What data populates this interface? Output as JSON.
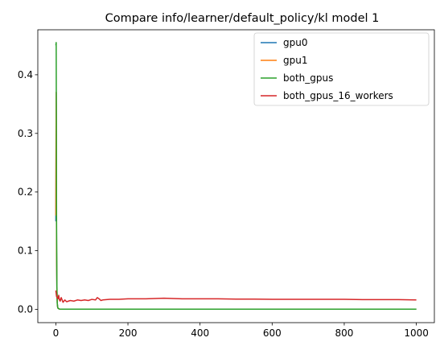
{
  "chart_data": {
    "type": "line",
    "title": "Compare info/learner/default_policy/kl model 1",
    "xlabel": "",
    "ylabel": "",
    "xlim": [
      -50,
      1050
    ],
    "ylim": [
      -0.0227,
      0.4767
    ],
    "x_ticks": [
      0,
      200,
      400,
      600,
      800,
      1000
    ],
    "y_ticks": [
      0.0,
      0.1,
      0.2,
      0.3,
      0.4
    ],
    "x_tick_labels": [
      "0",
      "200",
      "400",
      "600",
      "800",
      "1000"
    ],
    "y_tick_labels": [
      "0.0",
      "0.1",
      "0.2",
      "0.3",
      "0.4"
    ],
    "grid": false,
    "legend_position": "top-right",
    "series": [
      {
        "name": "gpu0",
        "color": "#1f77b4",
        "x": [
          0,
          1,
          2,
          3,
          4,
          5,
          6,
          8,
          10,
          20,
          50,
          100,
          200,
          400,
          600,
          800,
          1000
        ],
        "y": [
          0.15,
          0.37,
          0.1,
          0.03,
          0.01,
          0.004,
          0.002,
          0.001,
          0.0005,
          0.0003,
          0.0002,
          0.0002,
          0.0002,
          0.0002,
          0.0002,
          0.0002,
          0.0002
        ]
      },
      {
        "name": "gpu1",
        "color": "#ff7f0e",
        "x": [
          0,
          1,
          2,
          3,
          4,
          5,
          6,
          8,
          10,
          20,
          50,
          100,
          200,
          400,
          600,
          800,
          1000
        ],
        "y": [
          0.16,
          0.37,
          0.1,
          0.03,
          0.01,
          0.004,
          0.002,
          0.001,
          0.0005,
          0.0003,
          0.0002,
          0.0002,
          0.0002,
          0.0002,
          0.0002,
          0.0002,
          0.0002
        ]
      },
      {
        "name": "both_gpus",
        "color": "#2ca02c",
        "x": [
          0,
          1,
          2,
          3,
          4,
          5,
          6,
          8,
          10,
          20,
          50,
          100,
          200,
          400,
          600,
          800,
          1000
        ],
        "y": [
          0.45,
          0.455,
          0.15,
          0.04,
          0.01,
          0.004,
          0.002,
          0.001,
          0.0005,
          0.0003,
          0.0002,
          0.0002,
          0.0002,
          0.0002,
          0.0002,
          0.0002,
          0.0002
        ]
      },
      {
        "name": "both_gpus_16_workers",
        "color": "#d62728",
        "x": [
          0,
          2,
          4,
          6,
          8,
          10,
          12,
          15,
          20,
          25,
          30,
          40,
          50,
          60,
          70,
          80,
          90,
          100,
          110,
          115,
          120,
          125,
          130,
          150,
          175,
          200,
          250,
          300,
          350,
          400,
          450,
          500,
          550,
          600,
          650,
          700,
          750,
          800,
          850,
          900,
          950,
          1000
        ],
        "y": [
          0.032,
          0.022,
          0.02,
          0.018,
          0.024,
          0.016,
          0.014,
          0.02,
          0.012,
          0.016,
          0.013,
          0.015,
          0.014,
          0.016,
          0.015,
          0.016,
          0.015,
          0.017,
          0.016,
          0.02,
          0.018,
          0.015,
          0.016,
          0.017,
          0.017,
          0.018,
          0.018,
          0.019,
          0.018,
          0.018,
          0.018,
          0.0175,
          0.0175,
          0.017,
          0.017,
          0.017,
          0.017,
          0.017,
          0.0165,
          0.0165,
          0.0165,
          0.016
        ]
      }
    ]
  }
}
